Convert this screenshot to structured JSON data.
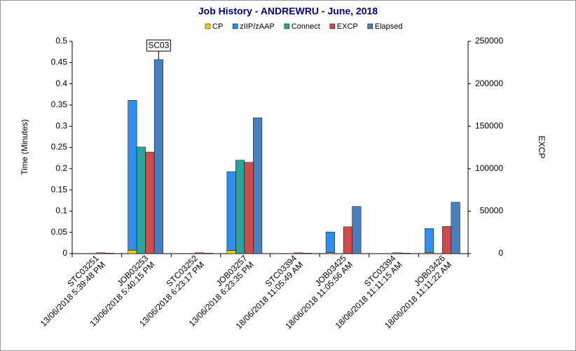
{
  "chart_data": {
    "type": "bar",
    "title": "Job History - ANDREWRU - June, 2018",
    "y_label": "Time (Minutes)",
    "y2_label": "EXCP",
    "categories": [
      [
        "STC03251",
        "13/06/2018 5:39:48 PM"
      ],
      [
        "JOB03253",
        "13/06/2018 5:40:15 PM"
      ],
      [
        "STC03252",
        "13/06/2018 6:23:17 PM"
      ],
      [
        "JOB03257",
        "13/06/2018 6:23:35 PM"
      ],
      [
        "STC03394",
        "18/06/2018 11:05:49 AM"
      ],
      [
        "JOB03425",
        "18/06/2018 11:05:56 AM"
      ],
      [
        "STC03394",
        "18/06/2018 11:11:15 AM"
      ],
      [
        "JOB03426",
        "18/06/2018 11:11:22 AM"
      ]
    ],
    "series": [
      {
        "name": "CP",
        "color": "#ffcc00",
        "values": [
          0,
          0.008,
          0,
          0.007,
          0,
          0.002,
          0,
          0.002
        ]
      },
      {
        "name": "zIIP/zAAP",
        "color": "#2f8ef0",
        "values": [
          0,
          0.353,
          0,
          0.186,
          0,
          0.049,
          0,
          0.057
        ]
      },
      {
        "name": "Connect",
        "color": "#2aa597",
        "values": [
          0,
          0.251,
          0,
          0.22,
          0,
          0,
          0,
          0
        ]
      },
      {
        "name": "EXCP",
        "color": "#d14b4b",
        "axis": "y2",
        "values": [
          1000,
          119600,
          1000,
          107500,
          1000,
          31500,
          1000,
          32000
        ]
      },
      {
        "name": "Elapsed",
        "color": "#4a7fbd",
        "values": [
          0.001,
          0.457,
          0.001,
          0.32,
          0.001,
          0.111,
          0.001,
          0.121
        ]
      }
    ],
    "annotation": "SC03",
    "ylim": [
      0,
      0.5
    ],
    "yticks": [
      0,
      0.05,
      0.1,
      0.15,
      0.2,
      0.25,
      0.3,
      0.35,
      0.4,
      0.45,
      0.5
    ],
    "y2lim": [
      0,
      250000
    ],
    "y2ticks": [
      0,
      50000,
      100000,
      150000,
      200000,
      250000
    ],
    "grid": false
  }
}
